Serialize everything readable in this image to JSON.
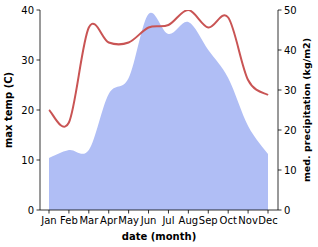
{
  "chart_data": {
    "type": "line",
    "x_label": "date (month)",
    "y_label": "max temp (C)",
    "y2_label": "med. precipitation (kg/m2)",
    "categories": [
      "Jan",
      "Feb",
      "Mar",
      "Apr",
      "May",
      "Jun",
      "Jul",
      "Aug",
      "Sep",
      "Oct",
      "Nov",
      "Dec"
    ],
    "ylim": [
      0,
      40
    ],
    "yticks": [
      0,
      10,
      20,
      30,
      40
    ],
    "y2lim": [
      0,
      50
    ],
    "y2ticks": [
      0,
      10,
      20,
      30,
      40,
      50
    ],
    "grid": false,
    "series": [
      {
        "name": "med. precipitation",
        "type": "area",
        "axis": "y2",
        "color": "#b0bef5",
        "values": [
          13,
          15,
          15,
          29,
          33,
          49,
          44,
          47,
          40,
          33,
          21,
          14
        ]
      },
      {
        "name": "max temp",
        "type": "line",
        "axis": "y",
        "color": "#c95454",
        "values": [
          20,
          17.5,
          36.5,
          33.5,
          33.5,
          36.5,
          37,
          40,
          36.5,
          38.5,
          26,
          23
        ]
      }
    ]
  }
}
